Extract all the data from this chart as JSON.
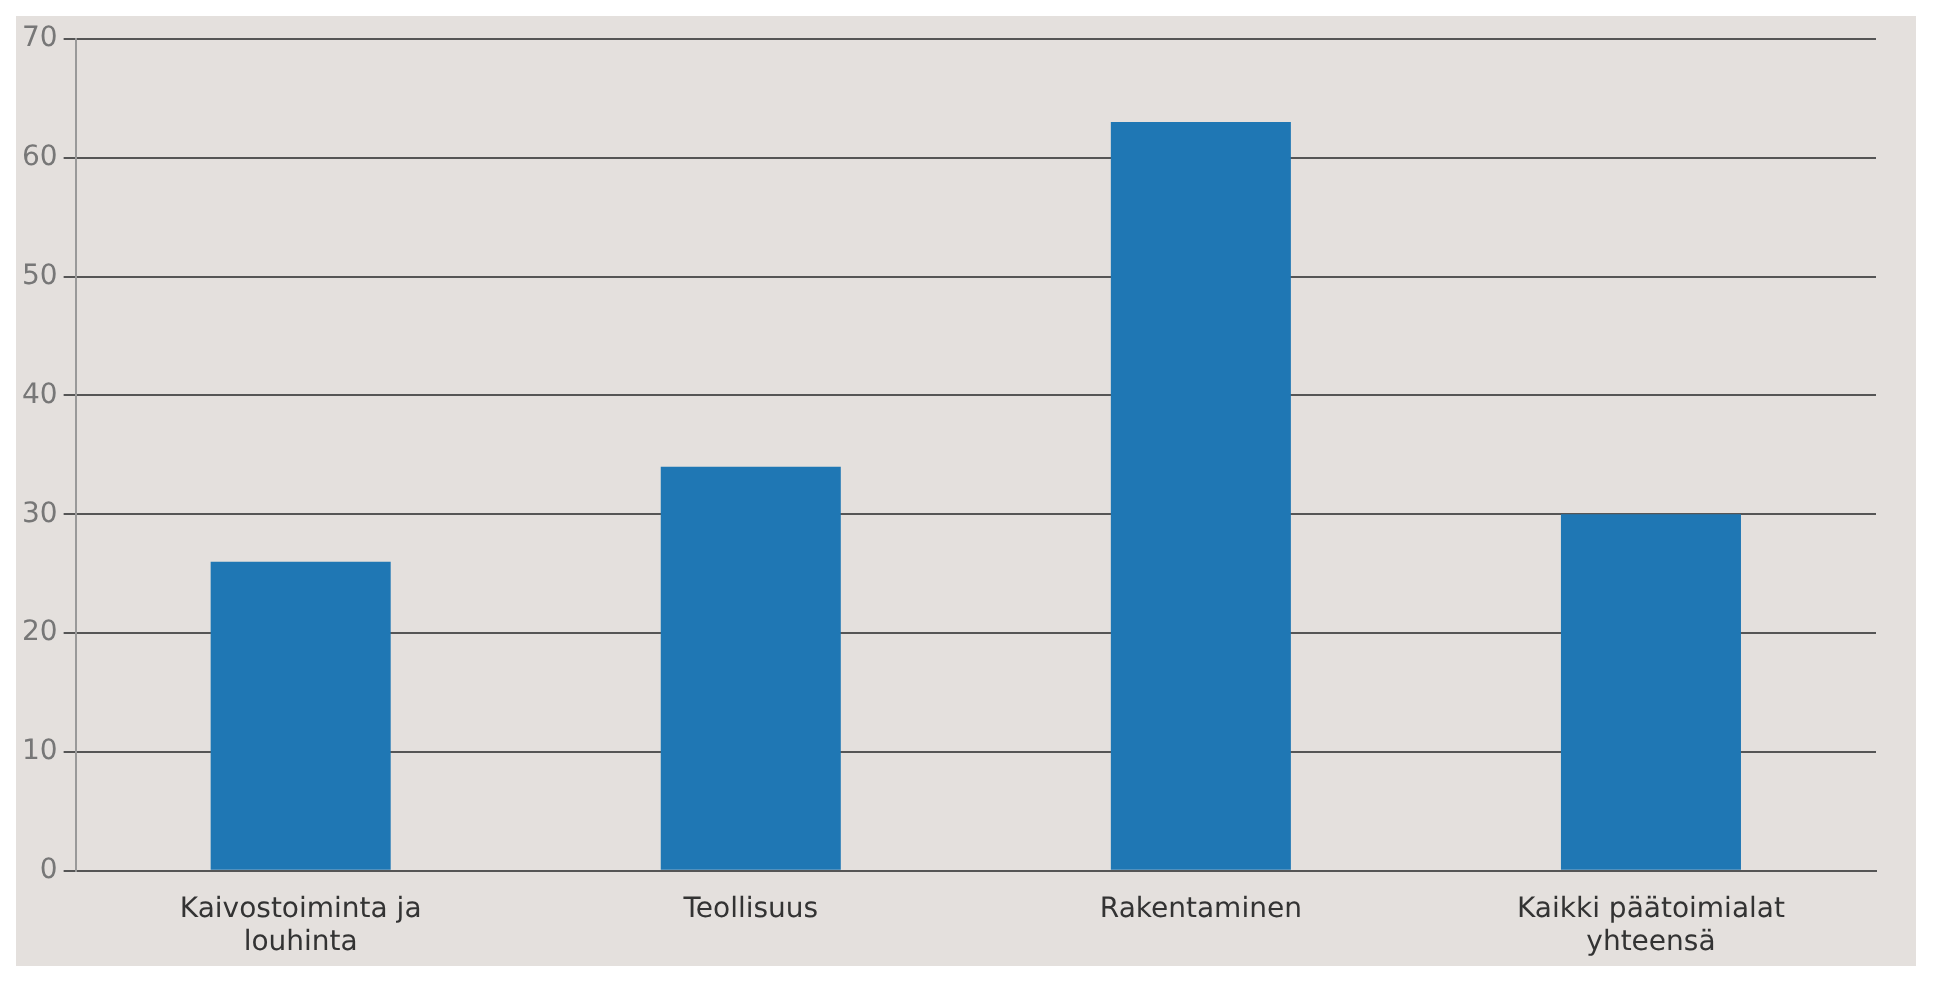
{
  "chart_data": {
    "type": "bar",
    "categories": [
      "Kaivostoiminta ja louhinta",
      "Teollisuus",
      "Rakentaminen",
      "Kaikki päätoimialat yhteensä"
    ],
    "values": [
      26,
      34,
      63,
      30
    ],
    "color": "#1f77b4",
    "ylim": [
      0,
      70
    ],
    "yticks": [
      0,
      10,
      20,
      30,
      40,
      50,
      60,
      70
    ],
    "grid": "y"
  }
}
